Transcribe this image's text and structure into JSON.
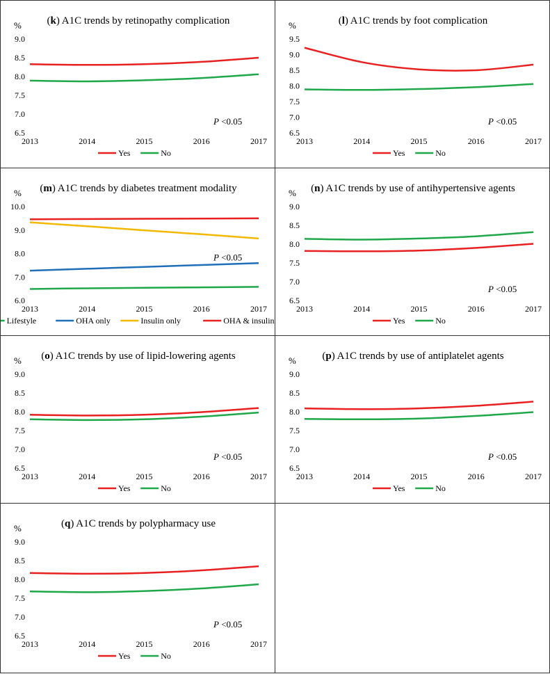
{
  "colors": {
    "red": "#e8201f",
    "green": "#1fa84a",
    "blue": "#1f6fb8",
    "gold": "#f5b800"
  },
  "chart_data": [
    {
      "type": "line",
      "id": "k",
      "title_letter": "k",
      "title_text": " A1C trends by retinopathy complication",
      "ylabel": "%",
      "ylim": [
        6.5,
        9.0
      ],
      "yticks": [
        "9.0",
        "8.5",
        "8.0",
        "7.5",
        "7.0",
        "6.5"
      ],
      "x": [
        "2013",
        "2014",
        "2015",
        "2016",
        "2017"
      ],
      "pvalue_italic": "P",
      "pvalue_text": " <0.05",
      "pvalue_pos": "lower-right",
      "series": [
        {
          "name": "Yes",
          "color": "red",
          "values": [
            8.33,
            8.31,
            8.33,
            8.39,
            8.5
          ]
        },
        {
          "name": "No",
          "color": "green",
          "values": [
            7.89,
            7.87,
            7.9,
            7.96,
            8.06
          ]
        }
      ]
    },
    {
      "type": "line",
      "id": "l",
      "title_letter": "l",
      "title_text": " A1C trends by foot complication",
      "ylabel": "%",
      "ylim": [
        6.5,
        9.5
      ],
      "yticks": [
        "9.5",
        "9.0",
        "8.5",
        "8.0",
        "7.5",
        "7.0",
        "6.5"
      ],
      "x": [
        "2013",
        "2014",
        "2015",
        "2016",
        "2017"
      ],
      "pvalue_italic": "P",
      "pvalue_text": " <0.05",
      "pvalue_pos": "lower-right",
      "series": [
        {
          "name": "Yes",
          "color": "red",
          "values": [
            9.22,
            8.76,
            8.53,
            8.5,
            8.68
          ]
        },
        {
          "name": "No",
          "color": "green",
          "values": [
            7.89,
            7.87,
            7.9,
            7.96,
            8.06
          ]
        }
      ]
    },
    {
      "type": "line",
      "id": "m",
      "title_letter": "m",
      "title_text": " A1C trends by diabetes treatment modality",
      "ylabel": "%",
      "ylim": [
        6.0,
        10.0
      ],
      "yticks": [
        "10.0",
        "9.0",
        "8.0",
        "7.0",
        "6.0"
      ],
      "x": [
        "2013",
        "2014",
        "2015",
        "2016",
        "2017"
      ],
      "pvalue_italic": "P",
      "pvalue_text": " <0.05",
      "pvalue_pos": "middle-right",
      "series": [
        {
          "name": "Lifestyle",
          "color": "green",
          "values": [
            6.49,
            6.52,
            6.54,
            6.56,
            6.58
          ]
        },
        {
          "name": "OHA only",
          "color": "blue",
          "values": [
            7.27,
            7.35,
            7.43,
            7.51,
            7.59
          ]
        },
        {
          "name": "Insulin only",
          "color": "gold",
          "values": [
            9.33,
            9.16,
            8.99,
            8.82,
            8.64
          ]
        },
        {
          "name": "OHA & insulin",
          "color": "red",
          "values": [
            9.46,
            9.47,
            9.48,
            9.49,
            9.5
          ]
        }
      ]
    },
    {
      "type": "line",
      "id": "n",
      "title_letter": "n",
      "title_text": " A1C trends by use of antihypertensive agents",
      "ylabel": "%",
      "ylim": [
        6.5,
        9.0
      ],
      "yticks": [
        "9.0",
        "8.5",
        "8.0",
        "7.5",
        "7.0",
        "6.5"
      ],
      "x": [
        "2013",
        "2014",
        "2015",
        "2016",
        "2017"
      ],
      "pvalue_italic": "P",
      "pvalue_text": " <0.05",
      "pvalue_pos": "lower-right",
      "series": [
        {
          "name": "Yes",
          "color": "red",
          "values": [
            7.82,
            7.81,
            7.83,
            7.9,
            8.01
          ]
        },
        {
          "name": "No",
          "color": "green",
          "values": [
            8.14,
            8.12,
            8.15,
            8.21,
            8.32
          ]
        }
      ]
    },
    {
      "type": "line",
      "id": "o",
      "title_letter": "o",
      "title_text": " A1C trends by use of lipid-lowering agents",
      "ylabel": "%",
      "ylim": [
        6.5,
        9.0
      ],
      "yticks": [
        "9.0",
        "8.5",
        "8.0",
        "7.5",
        "7.0",
        "6.5"
      ],
      "x": [
        "2013",
        "2014",
        "2015",
        "2016",
        "2017"
      ],
      "pvalue_italic": "P",
      "pvalue_text": " <0.05",
      "pvalue_pos": "lower-right",
      "series": [
        {
          "name": "Yes",
          "color": "red",
          "values": [
            7.92,
            7.9,
            7.92,
            7.99,
            8.1
          ]
        },
        {
          "name": "No",
          "color": "green",
          "values": [
            7.8,
            7.78,
            7.8,
            7.87,
            7.98
          ]
        }
      ]
    },
    {
      "type": "line",
      "id": "p",
      "title_letter": "p",
      "title_text": " A1C trends by use of antiplatelet agents",
      "ylabel": "%",
      "ylim": [
        6.5,
        9.0
      ],
      "yticks": [
        "9.0",
        "8.5",
        "8.0",
        "7.5",
        "7.0",
        "6.5"
      ],
      "x": [
        "2013",
        "2014",
        "2015",
        "2016",
        "2017"
      ],
      "pvalue_italic": "P",
      "pvalue_text": " <0.05",
      "pvalue_pos": "lower-right",
      "series": [
        {
          "name": "Yes",
          "color": "red",
          "values": [
            8.09,
            8.07,
            8.09,
            8.16,
            8.27
          ]
        },
        {
          "name": "No",
          "color": "green",
          "values": [
            7.81,
            7.8,
            7.82,
            7.89,
            7.99
          ]
        }
      ]
    },
    {
      "type": "line",
      "id": "q",
      "title_letter": "q",
      "title_text": " A1C trends by polypharmacy use",
      "ylabel": "%",
      "ylim": [
        6.5,
        9.0
      ],
      "yticks": [
        "9.0",
        "8.5",
        "8.0",
        "7.5",
        "7.0",
        "6.5"
      ],
      "x": [
        "2013",
        "2014",
        "2015",
        "2016",
        "2017"
      ],
      "pvalue_italic": "P",
      "pvalue_text": " <0.05",
      "pvalue_pos": "lower-right",
      "series": [
        {
          "name": "Yes",
          "color": "red",
          "values": [
            8.17,
            8.15,
            8.17,
            8.24,
            8.35
          ]
        },
        {
          "name": "No",
          "color": "green",
          "values": [
            7.68,
            7.66,
            7.69,
            7.76,
            7.87
          ]
        }
      ]
    }
  ]
}
